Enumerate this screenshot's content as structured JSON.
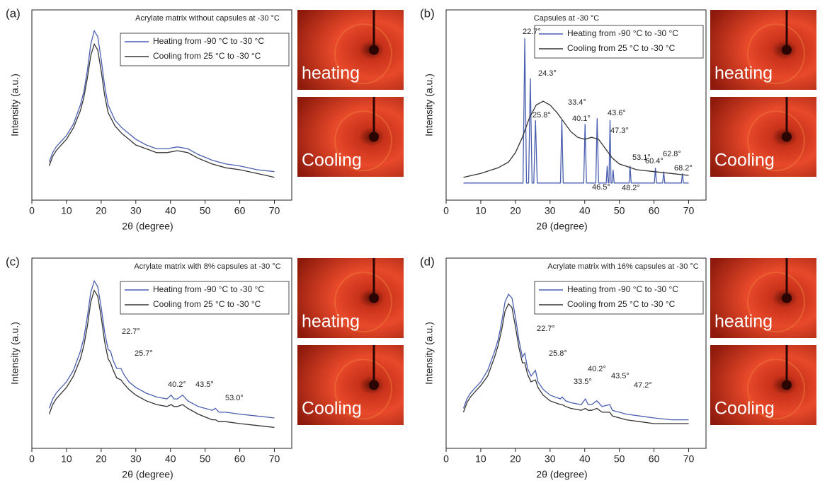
{
  "chart_data": [
    {
      "type": "line",
      "label": "(a)",
      "title": "Acrylate matrix without capsules at -30 °C",
      "xlabel": "2θ (degree)",
      "ylabel": "Intensity (a.u.)",
      "xlim": [
        0,
        75
      ],
      "xticks": [
        0,
        10,
        20,
        30,
        40,
        50,
        60,
        70
      ],
      "ylim": [
        0,
        100
      ],
      "legend": "upper right",
      "x": [
        5,
        6,
        7,
        8,
        10,
        12,
        14,
        15,
        16,
        17,
        18,
        19,
        20,
        21,
        22,
        24,
        26,
        28,
        30,
        33,
        36,
        39,
        42,
        45,
        48,
        52,
        56,
        60,
        65,
        70
      ],
      "series": [
        {
          "name": "Heating from -90 °C to -30 °C",
          "color": "#4a5fb0",
          "values": [
            20,
            25,
            28,
            30,
            34,
            40,
            50,
            57,
            68,
            82,
            89,
            86,
            74,
            60,
            50,
            42,
            38,
            35,
            32,
            29,
            27,
            27,
            28,
            27,
            24,
            21,
            19,
            18,
            16,
            15
          ]
        },
        {
          "name": "Cooling from 25 °C to -30 °C",
          "color": "#333333",
          "values": [
            18,
            23,
            26,
            28,
            32,
            38,
            47,
            54,
            64,
            76,
            82,
            79,
            68,
            55,
            46,
            39,
            35,
            32,
            29,
            27,
            25,
            25,
            26,
            25,
            22,
            19,
            17,
            16,
            14,
            12
          ]
        }
      ],
      "annotations": [],
      "photo_labels": [
        "heating",
        "Cooling"
      ]
    },
    {
      "type": "line",
      "label": "(b)",
      "title": "Capsules at -30 °C",
      "xlabel": "2θ (degree)",
      "ylabel": "Intensity (a.u.)",
      "xlim": [
        0,
        75
      ],
      "xticks": [
        0,
        10,
        20,
        30,
        40,
        50,
        60,
        70
      ],
      "ylim": [
        0,
        100
      ],
      "legend": "upper right",
      "series": [
        {
          "name": "Heating from -90 °C to -30 °C",
          "color": "#4a5fb0",
          "x": [
            5,
            20,
            22.2,
            22.7,
            23.2,
            23.8,
            24.3,
            24.8,
            25.3,
            25.8,
            26.3,
            33,
            33.4,
            33.8,
            39.7,
            40.1,
            40.5,
            43.2,
            43.6,
            44,
            46.2,
            46.5,
            46.8,
            47,
            47.3,
            47.6,
            47.9,
            48.2,
            48.5,
            52.8,
            53.1,
            53.4,
            60.1,
            60.4,
            60.7,
            62.5,
            62.8,
            63.1,
            67.9,
            68.2,
            68.5,
            70
          ],
          "values": [
            9,
            9,
            9,
            85,
            9,
            9,
            64,
            9,
            9,
            42,
            9,
            9,
            42,
            9,
            9,
            40,
            9,
            9,
            43,
            9,
            9,
            18,
            9,
            9,
            42,
            9,
            9,
            16,
            9,
            9,
            18,
            9,
            9,
            17,
            9,
            9,
            15,
            9,
            9,
            14,
            9,
            9
          ]
        },
        {
          "name": "Cooling from 25 °C to -30 °C",
          "color": "#333333",
          "x": [
            5,
            10,
            15,
            18,
            20,
            22,
            24,
            26,
            28,
            30,
            32,
            34,
            36,
            38,
            40,
            42,
            44,
            46,
            48,
            50,
            55,
            60,
            65,
            70
          ],
          "values": [
            12,
            14,
            17,
            20,
            25,
            33,
            43,
            50,
            52,
            50,
            46,
            41,
            36,
            33,
            32,
            33,
            32,
            27,
            22,
            19,
            16,
            15,
            14,
            13
          ]
        }
      ],
      "annotations": [
        "22.7°",
        "24.3°",
        "25.8°",
        "33.4°",
        "40.1°",
        "43.6°",
        "47.3°",
        "53.1°",
        "60.4°",
        "62.8°",
        "68.2°",
        "46.5°",
        "48.2°"
      ],
      "photo_labels": [
        "heating",
        "Cooling"
      ]
    },
    {
      "type": "line",
      "label": "(c)",
      "title": "Acrylate matrix with 8% capsules at -30 °C",
      "xlabel": "2θ (degree)",
      "ylabel": "Intensity (a.u.)",
      "xlim": [
        0,
        75
      ],
      "xticks": [
        0,
        10,
        20,
        30,
        40,
        50,
        60,
        70
      ],
      "ylim": [
        0,
        100
      ],
      "legend": "upper right",
      "x": [
        5,
        6,
        7,
        8,
        10,
        12,
        14,
        15,
        16,
        17,
        18,
        19,
        20,
        21,
        22,
        22.7,
        23.5,
        24.5,
        25.7,
        26.5,
        28,
        30,
        33,
        36,
        39,
        40.2,
        41,
        42,
        43.5,
        45,
        48,
        52,
        53,
        54,
        56,
        60,
        65,
        70
      ],
      "series": [
        {
          "name": "Heating from -90 °C to -30 °C",
          "color": "#4a5fb0",
          "values": [
            21,
            26,
            29,
            31,
            35,
            41,
            51,
            58,
            69,
            82,
            88,
            85,
            74,
            61,
            52,
            51,
            46,
            42,
            42,
            39,
            35,
            32,
            29,
            27,
            26,
            28,
            26,
            26,
            28,
            25,
            22,
            20,
            21,
            19,
            19,
            18,
            17,
            16
          ]
        },
        {
          "name": "Cooling from 25 °C to -30 °C",
          "color": "#333333",
          "values": [
            18,
            23,
            26,
            28,
            32,
            38,
            47,
            54,
            64,
            77,
            83,
            80,
            69,
            56,
            47,
            45,
            41,
            37,
            36,
            34,
            31,
            28,
            25,
            23,
            22,
            23,
            22,
            22,
            23,
            21,
            18,
            15,
            15,
            14,
            14,
            13,
            12,
            11
          ]
        }
      ],
      "annotations": [
        "22.7°",
        "25.7°",
        "40.2°",
        "43.5°",
        "53.0°"
      ],
      "photo_labels": [
        "heating",
        "Cooling"
      ]
    },
    {
      "type": "line",
      "label": "(d)",
      "title": "Acrylate matrix with 16% capsules at -30 °C",
      "xlabel": "2θ (degree)",
      "ylabel": "Intensity (a.u.)",
      "xlim": [
        0,
        75
      ],
      "xticks": [
        0,
        10,
        20,
        30,
        40,
        50,
        60,
        70
      ],
      "ylim": [
        0,
        100
      ],
      "legend": "upper right",
      "x": [
        5,
        6,
        7,
        8,
        10,
        12,
        14,
        15,
        16,
        17,
        18,
        19,
        20,
        21,
        22,
        22.7,
        23.5,
        24.5,
        25.8,
        26.5,
        28,
        30,
        33,
        33.5,
        34.5,
        36,
        39,
        40.2,
        41,
        42,
        43.5,
        45,
        47.2,
        48,
        52,
        56,
        60,
        65,
        70
      ],
      "series": [
        {
          "name": "Heating from -90 °C to -30 °C",
          "color": "#4a5fb0",
          "values": [
            21,
            26,
            29,
            31,
            35,
            41,
            51,
            57,
            66,
            77,
            81,
            79,
            69,
            57,
            48,
            50,
            42,
            38,
            41,
            35,
            31,
            28,
            26,
            27,
            25,
            24,
            23,
            26,
            23,
            23,
            25,
            22,
            23,
            20,
            18,
            17,
            16,
            15,
            15
          ]
        },
        {
          "name": "Cooling from 25 °C to -30 °C",
          "color": "#333333",
          "values": [
            19,
            24,
            27,
            29,
            33,
            38,
            48,
            54,
            62,
            72,
            76,
            74,
            64,
            53,
            45,
            45,
            39,
            35,
            36,
            32,
            28,
            25,
            23,
            23,
            22,
            21,
            20,
            21,
            20,
            20,
            21,
            19,
            19,
            17,
            15,
            14,
            13,
            13,
            13
          ]
        }
      ],
      "annotations": [
        "22.7°",
        "25.8°",
        "33.5°",
        "40.2°",
        "43.5°",
        "47.2°"
      ],
      "photo_labels": [
        "heating",
        "Cooling"
      ]
    }
  ]
}
